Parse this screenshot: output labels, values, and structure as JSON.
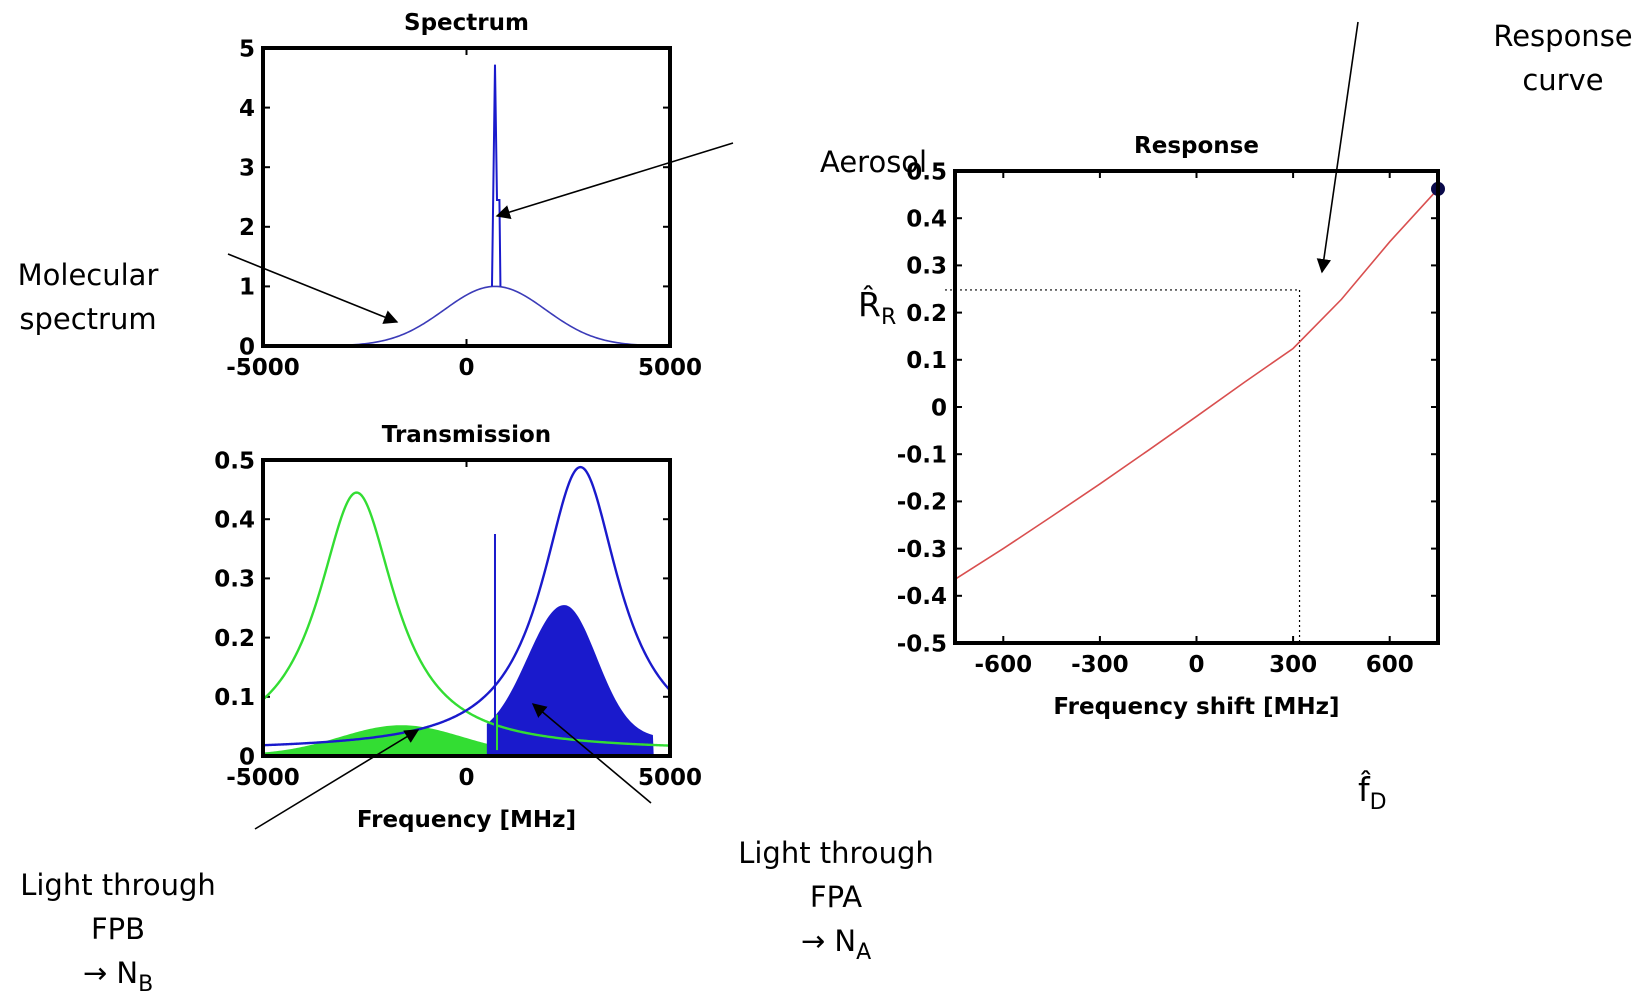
{
  "charts": {
    "spectrum": {
      "type": "line",
      "title": "Spectrum",
      "xlabel": "",
      "ylabel": "",
      "xlim": [
        -5000,
        5000
      ],
      "ylim": [
        0,
        5
      ],
      "xticks": [
        "-5000",
        "0",
        "5000"
      ],
      "yticks": [
        "0",
        "1",
        "2",
        "3",
        "4",
        "5"
      ],
      "series": [
        {
          "role": "molecular",
          "color": "#3b3bb8",
          "model": "gaussian",
          "center": 700,
          "amplitude": 1,
          "sigma": 1250,
          "x": [
            -3000,
            -2500,
            -2000,
            -1500,
            -1000,
            -500,
            0,
            500,
            700,
            1000,
            1500,
            2000,
            2500,
            3000,
            3500,
            4000,
            4500
          ],
          "y": [
            0.01,
            0.04,
            0.1,
            0.23,
            0.39,
            0.63,
            0.85,
            0.99,
            1.0,
            0.97,
            0.81,
            0.58,
            0.35,
            0.18,
            0.08,
            0.03,
            0.01
          ]
        },
        {
          "role": "aerosol",
          "color": "#1a1acc",
          "model": "spike",
          "center": 700,
          "peak": 4.72,
          "shoulder_x": 760,
          "shoulder_y": 2.45
        }
      ]
    },
    "transmission": {
      "type": "area",
      "title": "Transmission",
      "xlabel": "Frequency [MHz]",
      "ylabel": "",
      "xlim": [
        -5000,
        5000
      ],
      "ylim": [
        0,
        0.5
      ],
      "xticks": [
        "-5000",
        "0",
        "5000"
      ],
      "yticks": [
        "0",
        "0.1",
        "0.2",
        "0.3",
        "0.4",
        "0.5"
      ],
      "series": [
        {
          "role": "FPB",
          "color": "#33dd33",
          "model": "lorentzian",
          "center": -2700,
          "peak": 0.445,
          "hwhm": 1150,
          "offset": 0.008,
          "filled_peak": 0.05,
          "filled_peak_x": -1600
        },
        {
          "role": "FPA",
          "color": "#1a1acc",
          "model": "lorentzian",
          "center": 2800,
          "peak": 0.488,
          "hwhm": 1150,
          "offset": 0.008,
          "filled_peak": 0.225,
          "filled_peak_x": 2400,
          "spike_x": 700,
          "spike_y": 0.375
        }
      ]
    },
    "response": {
      "type": "line",
      "title": "Response",
      "xlabel": "Frequency shift [MHz]",
      "ylabel": "",
      "xlim": [
        -750,
        750
      ],
      "ylim": [
        -0.5,
        0.5
      ],
      "xticks": [
        "-600",
        "-300",
        "0",
        "300",
        "600"
      ],
      "yticks": [
        "-0.5",
        "-0.4",
        "-0.3",
        "-0.2",
        "-0.1",
        "0",
        "0.1",
        "0.2",
        "0.3",
        "0.4",
        "0.5"
      ],
      "series": [
        {
          "role": "response-curve",
          "color": "#d94f4f",
          "x": [
            -750,
            -600,
            -450,
            -300,
            -150,
            0,
            150,
            300,
            450,
            600,
            750
          ],
          "y": [
            -0.365,
            -0.3,
            -0.232,
            -0.163,
            -0.092,
            -0.02,
            0.053,
            0.124,
            0.228,
            0.35,
            0.462
          ]
        }
      ],
      "marker": {
        "x": 750,
        "y": 0.462,
        "color": "#0a0a4a"
      },
      "readout": {
        "x": 320,
        "y": 0.248
      }
    }
  },
  "annotations": {
    "aerosol": "Aerosol",
    "molecular_1": "Molecular",
    "molecular_2": "spectrum",
    "response_curve_1": "Response",
    "response_curve_2": "curve",
    "fpb_1": "Light through",
    "fpb_2": "FPB",
    "fpb_arrow": "→ N",
    "fpb_sub": "B",
    "fpa_1": "Light through",
    "fpa_2": "FPA",
    "fpa_arrow": "→ N",
    "fpa_sub": "A",
    "r_hat": "R̂",
    "r_sub": "R",
    "f_hat": "f̂",
    "f_sub": "D"
  }
}
